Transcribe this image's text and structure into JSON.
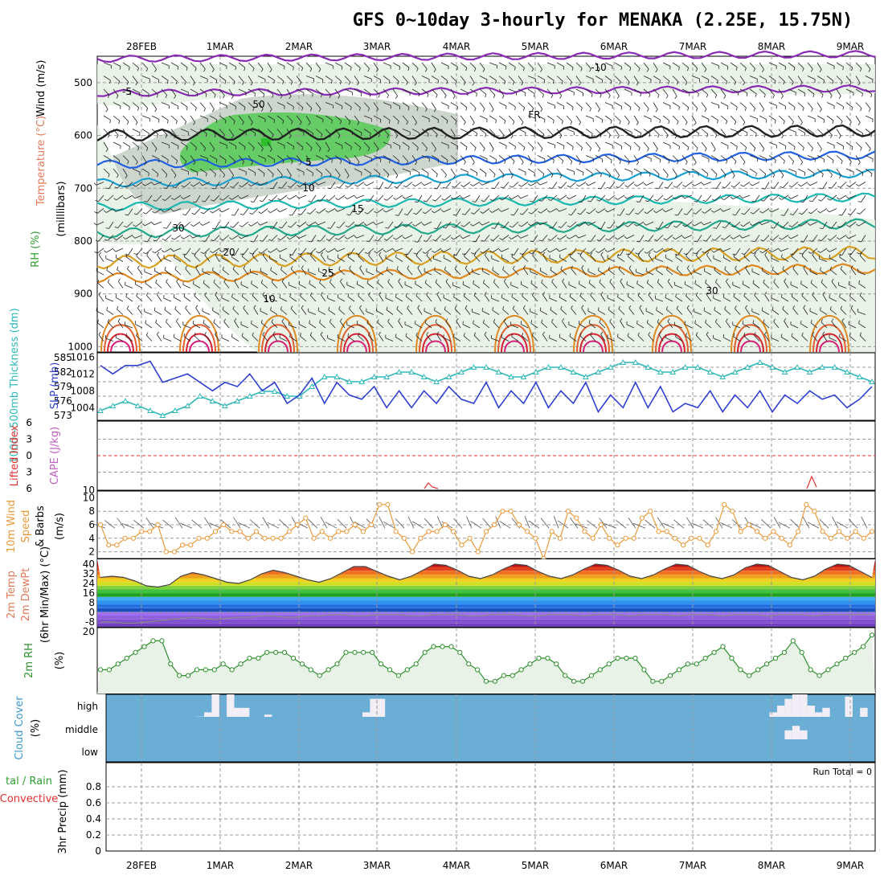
{
  "title": "GFS 0~10day 3-hourly for MENAKA (2.25E, 15.75N)",
  "dates": [
    "28FEB",
    "1MAR",
    "2MAR",
    "3MAR",
    "4MAR",
    "5MAR",
    "6MAR",
    "7MAR",
    "8MAR",
    "9MAR"
  ],
  "colors": {
    "rh_green": "#66cc66",
    "rh_light": "#e8f2e6",
    "rh_gray": "#c8d2c6",
    "slp": "#2f3fd0",
    "thickness": "#2fb8b8",
    "lifted_index": "#e03030",
    "cape": "#c060c0",
    "wind": "#e89a3a",
    "temp_fill": "#ff8800",
    "dewpt": "#888888",
    "rh2m": "#2f8f2f",
    "cloud": "#6aaed6",
    "cloud_frac": "#f3eef6",
    "precip_total": "#2f9f2f",
    "precip_conv": "#e03030"
  },
  "panels": {
    "upper_air": {
      "ylabels": [
        {
          "text": "Wind (m/s)",
          "color": "#000000"
        },
        {
          "text": "Temperature (°C)",
          "color": "#e07a5a"
        },
        {
          "text": "RH (%)",
          "color": "#2f9f2f"
        },
        {
          "text": "(milllibars)",
          "color": "#000000"
        }
      ],
      "y_ticks": [
        "500",
        "600",
        "700",
        "800",
        "900",
        "1000"
      ],
      "contour_labels": [
        "-10",
        "-5",
        "FR",
        "5",
        "10",
        "15",
        "20",
        "25",
        "30",
        "50",
        "30",
        "10"
      ]
    },
    "pressure": {
      "ylabels": [
        {
          "text": "1000~500mb Thickness (dm)",
          "color": "#2fb8b8"
        },
        {
          "text": "SLP (mb)",
          "color": "#2f3fd0"
        }
      ],
      "thickness_ticks": [
        "585",
        "582",
        "579",
        "576",
        "573"
      ],
      "slp_ticks": [
        "1016",
        "1012",
        "1008",
        "1004"
      ]
    },
    "stability": {
      "ylabels": [
        {
          "text": "Lifted Index",
          "color": "#e03030"
        },
        {
          "text": "CAPE (J/kg)",
          "color": "#c060c0"
        }
      ],
      "li_ticks": [
        "6",
        "3",
        "0",
        "3",
        "6"
      ],
      "cape_ticks": [
        "10"
      ]
    },
    "wind10m": {
      "ylabels": [
        {
          "text": "10m Wind",
          "color": "#e89a3a"
        },
        {
          "text": "Speed",
          "color": "#e89a3a"
        },
        {
          "text": "& Barbs",
          "color": "#000000"
        },
        {
          "text": "(m/s)",
          "color": "#000000"
        }
      ],
      "y_ticks": [
        "10",
        "8",
        "6",
        "4",
        "2"
      ]
    },
    "temp2m": {
      "ylabels": [
        {
          "text": "2m Temp",
          "color": "#e07a5a"
        },
        {
          "text": "2m DewPt",
          "color": "#e07a5a"
        },
        {
          "text": "(6hr Min/Max) (°C)",
          "color": "#000000"
        }
      ],
      "y_ticks": [
        "40",
        "32",
        "24",
        "16",
        "8",
        "0",
        "-8"
      ]
    },
    "rh2m": {
      "ylabels": [
        {
          "text": "2m RH",
          "color": "#2f8f2f"
        },
        {
          "text": "(%)",
          "color": "#000000"
        }
      ],
      "y_ticks": [
        "20"
      ]
    },
    "cloud": {
      "ylabels": [
        {
          "text": "Cloud Cover",
          "color": "#3a9ad0"
        },
        {
          "text": "(%)",
          "color": "#000000"
        }
      ],
      "levels": [
        "high",
        "middle",
        "low"
      ]
    },
    "precip": {
      "ylabels": [
        {
          "text": "tal / Rain",
          "color": "#2f9f2f"
        },
        {
          "text": "Convective",
          "color": "#e03030"
        },
        {
          "text": "3hr Precip (mm)",
          "color": "#000000"
        }
      ],
      "y_ticks": [
        "0.8",
        "0.6",
        "0.4",
        "0.2",
        "0"
      ],
      "run_total": "Run Total = 0"
    }
  },
  "chart_data": [
    {
      "type": "line",
      "title": "1000~500mb Thickness / SLP",
      "series": [
        {
          "name": "SLP (mb)",
          "values": [
            1014,
            1012,
            1014,
            1014,
            1015,
            1010,
            1011,
            1012,
            1010,
            1008,
            1010,
            1009,
            1012,
            1008,
            1010,
            1005,
            1007,
            1011,
            1005,
            1010,
            1007,
            1006,
            1009,
            1004,
            1008,
            1004,
            1008,
            1005,
            1009,
            1006,
            1005,
            1010,
            1004,
            1008,
            1005,
            1010,
            1004,
            1008,
            1005,
            1010,
            1003,
            1007,
            1004,
            1010,
            1004,
            1009,
            1003,
            1005,
            1004,
            1008,
            1003,
            1007,
            1004,
            1008,
            1003,
            1007,
            1005,
            1008,
            1006,
            1007,
            1004,
            1006,
            1009
          ]
        },
        {
          "name": "Thickness (dm)",
          "values": [
            574,
            575,
            576,
            575,
            574,
            573,
            574,
            575,
            577,
            576,
            575,
            576,
            577,
            578,
            578,
            577,
            577,
            579,
            581,
            581,
            580,
            580,
            581,
            581,
            582,
            582,
            581,
            580,
            581,
            582,
            583,
            583,
            582,
            581,
            581,
            582,
            583,
            583,
            582,
            581,
            582,
            583,
            584,
            584,
            583,
            582,
            582,
            583,
            583,
            582,
            581,
            582,
            583,
            584,
            583,
            582,
            583,
            582,
            583,
            583,
            582,
            581,
            580
          ]
        }
      ]
    },
    {
      "type": "line",
      "title": "10m Wind Speed",
      "ylim": [
        1,
        11
      ],
      "series": [
        {
          "name": "10m Wind Speed (m/s)",
          "values": [
            6,
            3,
            3,
            4,
            4,
            5,
            5,
            6,
            2,
            2,
            3,
            3,
            4,
            4,
            5,
            6,
            5,
            5,
            4,
            5,
            4,
            4,
            4,
            5,
            6,
            7,
            4,
            5,
            4,
            5,
            5,
            6,
            5,
            6,
            9,
            9,
            5,
            4,
            2,
            4,
            5,
            5,
            6,
            5,
            3,
            4,
            2,
            5,
            6,
            8,
            8,
            6,
            5,
            4,
            1,
            5,
            4,
            8,
            7,
            5,
            4,
            6,
            4,
            3,
            4,
            4,
            7,
            8,
            5,
            5,
            4,
            3,
            4,
            4,
            3,
            5,
            9,
            8,
            5,
            6,
            5,
            4,
            5,
            4,
            3,
            5,
            9,
            8,
            5,
            4,
            5,
            4,
            5,
            4,
            5
          ]
        }
      ]
    },
    {
      "type": "area",
      "title": "2m Temp",
      "ylim": [
        -12,
        44
      ],
      "series": [
        {
          "name": "2m Temp (°C)",
          "values": [
            29,
            30,
            29,
            26,
            22,
            21,
            23,
            30,
            33,
            31,
            28,
            25,
            24,
            27,
            32,
            35,
            33,
            30,
            27,
            25,
            28,
            33,
            38,
            38,
            34,
            30,
            27,
            30,
            35,
            40,
            39,
            35,
            30,
            28,
            31,
            36,
            40,
            39,
            34,
            30,
            28,
            31,
            36,
            40,
            39,
            35,
            30,
            28,
            31,
            36,
            40,
            39,
            34,
            30,
            28,
            31,
            37,
            40,
            39,
            34,
            29,
            27,
            30,
            36,
            40,
            39,
            34,
            29
          ]
        },
        {
          "name": "2m DewPt (°C)",
          "values": [
            -8,
            -8,
            -9,
            -9,
            -8,
            -7,
            -6,
            -5,
            -4,
            -5,
            -6,
            -5,
            -4,
            -4,
            -3,
            -3,
            -4,
            -4,
            -3,
            -3,
            -2,
            -2,
            -3,
            -3,
            -2,
            -2,
            -2,
            -3,
            -3,
            -2,
            -2,
            -2,
            -3,
            -3,
            -2,
            -2,
            -2,
            -3,
            -3,
            -2,
            -2,
            -2,
            -3,
            -2,
            -2,
            -2,
            -3,
            -2,
            -2,
            -2,
            -3,
            -2,
            -2,
            -2,
            -3,
            -2,
            -2,
            -2,
            -3,
            -2,
            -2,
            -2,
            -3,
            -2,
            -2,
            -2,
            -2,
            -2
          ]
        }
      ]
    },
    {
      "type": "line",
      "title": "2m RH",
      "series": [
        {
          "name": "2m RH (%)",
          "values": [
            7,
            7,
            8,
            9,
            10,
            11,
            12,
            12,
            8,
            6,
            6,
            7,
            7,
            7,
            8,
            7,
            8,
            9,
            9,
            10,
            10,
            10,
            9,
            8,
            7,
            6,
            7,
            8,
            10,
            10,
            10,
            10,
            8,
            7,
            6,
            7,
            8,
            10,
            11,
            11,
            11,
            10,
            8,
            7,
            5,
            5,
            6,
            6,
            7,
            8,
            9,
            9,
            8,
            6,
            5,
            5,
            6,
            7,
            8,
            9,
            9,
            9,
            7,
            5,
            5,
            6,
            7,
            8,
            8,
            9,
            10,
            11,
            9,
            7,
            6,
            7,
            8,
            9,
            10,
            12,
            10,
            7,
            6,
            7,
            8,
            9,
            10,
            11,
            13
          ]
        }
      ]
    },
    {
      "type": "bar",
      "title": "Cloud Cover",
      "series": [
        {
          "name": "high",
          "values": [
            0,
            0,
            0,
            0,
            0,
            0,
            0,
            0,
            0,
            0,
            0,
            0,
            1,
            20,
            100,
            0,
            100,
            40,
            40,
            0,
            0,
            10,
            0,
            0,
            0,
            0,
            0,
            0,
            0,
            0,
            0,
            0,
            0,
            0,
            20,
            80,
            80,
            0,
            0,
            0,
            0,
            0,
            0,
            0,
            0,
            0,
            0,
            0,
            0,
            0,
            0,
            0,
            0,
            0,
            0,
            0,
            0,
            0,
            0,
            0,
            0,
            0,
            0,
            0,
            0,
            0,
            0,
            0,
            0,
            0,
            0,
            0,
            0,
            0,
            0,
            0,
            0,
            0,
            0,
            0,
            0,
            0,
            0,
            0,
            0,
            0,
            0,
            0,
            20,
            50,
            80,
            100,
            100,
            50,
            20,
            40,
            0,
            0,
            90,
            0,
            40,
            0
          ]
        },
        {
          "name": "middle",
          "values": [
            0,
            0,
            0,
            0,
            0,
            0,
            0,
            0,
            0,
            0,
            0,
            0,
            0,
            0,
            0,
            0,
            0,
            0,
            0,
            0,
            0,
            0,
            0,
            0,
            0,
            0,
            0,
            0,
            0,
            0,
            0,
            0,
            0,
            0,
            0,
            0,
            0,
            0,
            0,
            0,
            0,
            0,
            0,
            0,
            0,
            0,
            0,
            0,
            0,
            0,
            0,
            0,
            0,
            0,
            0,
            0,
            0,
            0,
            0,
            0,
            0,
            0,
            0,
            0,
            0,
            0,
            0,
            0,
            0,
            0,
            0,
            0,
            0,
            0,
            0,
            0,
            0,
            0,
            0,
            0,
            0,
            0,
            0,
            0,
            0,
            0,
            0,
            0,
            0,
            0,
            40,
            60,
            40,
            0,
            0,
            0,
            0,
            0,
            0,
            0,
            0,
            0
          ]
        },
        {
          "name": "low",
          "values": [
            0,
            0,
            0,
            0,
            0,
            0,
            0,
            0,
            0,
            0,
            0,
            0,
            0,
            0,
            0,
            0,
            0,
            0,
            0,
            0,
            0,
            0,
            0,
            0,
            0,
            0,
            0,
            0,
            0,
            0,
            0,
            0,
            0,
            0,
            0,
            0,
            0,
            0,
            0,
            0,
            0,
            0,
            0,
            0,
            0,
            0,
            0,
            0,
            0,
            0,
            0,
            0,
            0,
            0,
            0,
            0,
            0,
            0,
            0,
            0,
            0,
            0,
            0,
            0,
            0,
            0,
            0,
            0,
            0,
            0,
            0,
            0,
            0,
            0,
            0,
            0,
            0,
            0,
            0,
            0,
            0,
            0,
            0,
            0,
            0,
            0,
            0,
            0,
            0,
            0,
            0,
            0,
            0,
            0,
            0,
            0,
            0,
            0,
            0,
            0,
            0,
            0
          ]
        }
      ]
    },
    {
      "type": "bar",
      "title": "3hr Precip",
      "ylim": [
        0,
        1
      ],
      "series": [
        {
          "name": "Total / Rain",
          "values": [
            0,
            0,
            0,
            0,
            0,
            0,
            0,
            0,
            0,
            0
          ]
        },
        {
          "name": "Convective",
          "values": [
            0,
            0,
            0,
            0,
            0,
            0,
            0,
            0,
            0,
            0
          ]
        }
      ]
    }
  ]
}
